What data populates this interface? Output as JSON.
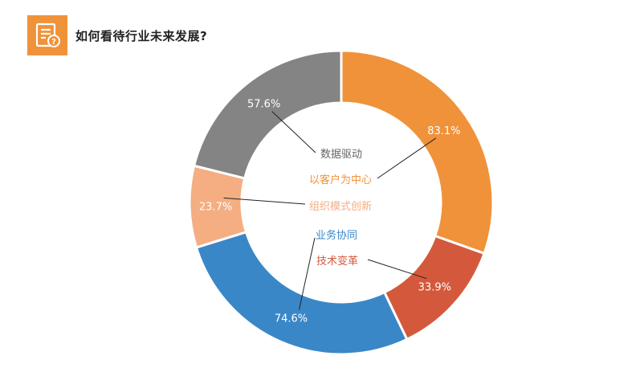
{
  "header": {
    "title": "如何看待行业未来发展?",
    "icon": "document-question-icon",
    "icon_color": "#f0923a"
  },
  "chart_data": {
    "type": "pie",
    "title": "如何看待行业未来发展?",
    "series": [
      {
        "name": "以客户为中心",
        "value": 83.1,
        "label": "83.1%",
        "color": "#f0923a"
      },
      {
        "name": "技术变革",
        "value": 33.9,
        "label": "33.9%",
        "color": "#d4593c"
      },
      {
        "name": "业务协同",
        "value": 74.6,
        "label": "74.6%",
        "color": "#3a87c8"
      },
      {
        "name": "组织模式创新",
        "value": 23.7,
        "label": "23.7%",
        "color": "#f4ae82"
      },
      {
        "name": "数据驱动",
        "value": 57.6,
        "label": "57.6%",
        "color": "#848484"
      }
    ]
  }
}
